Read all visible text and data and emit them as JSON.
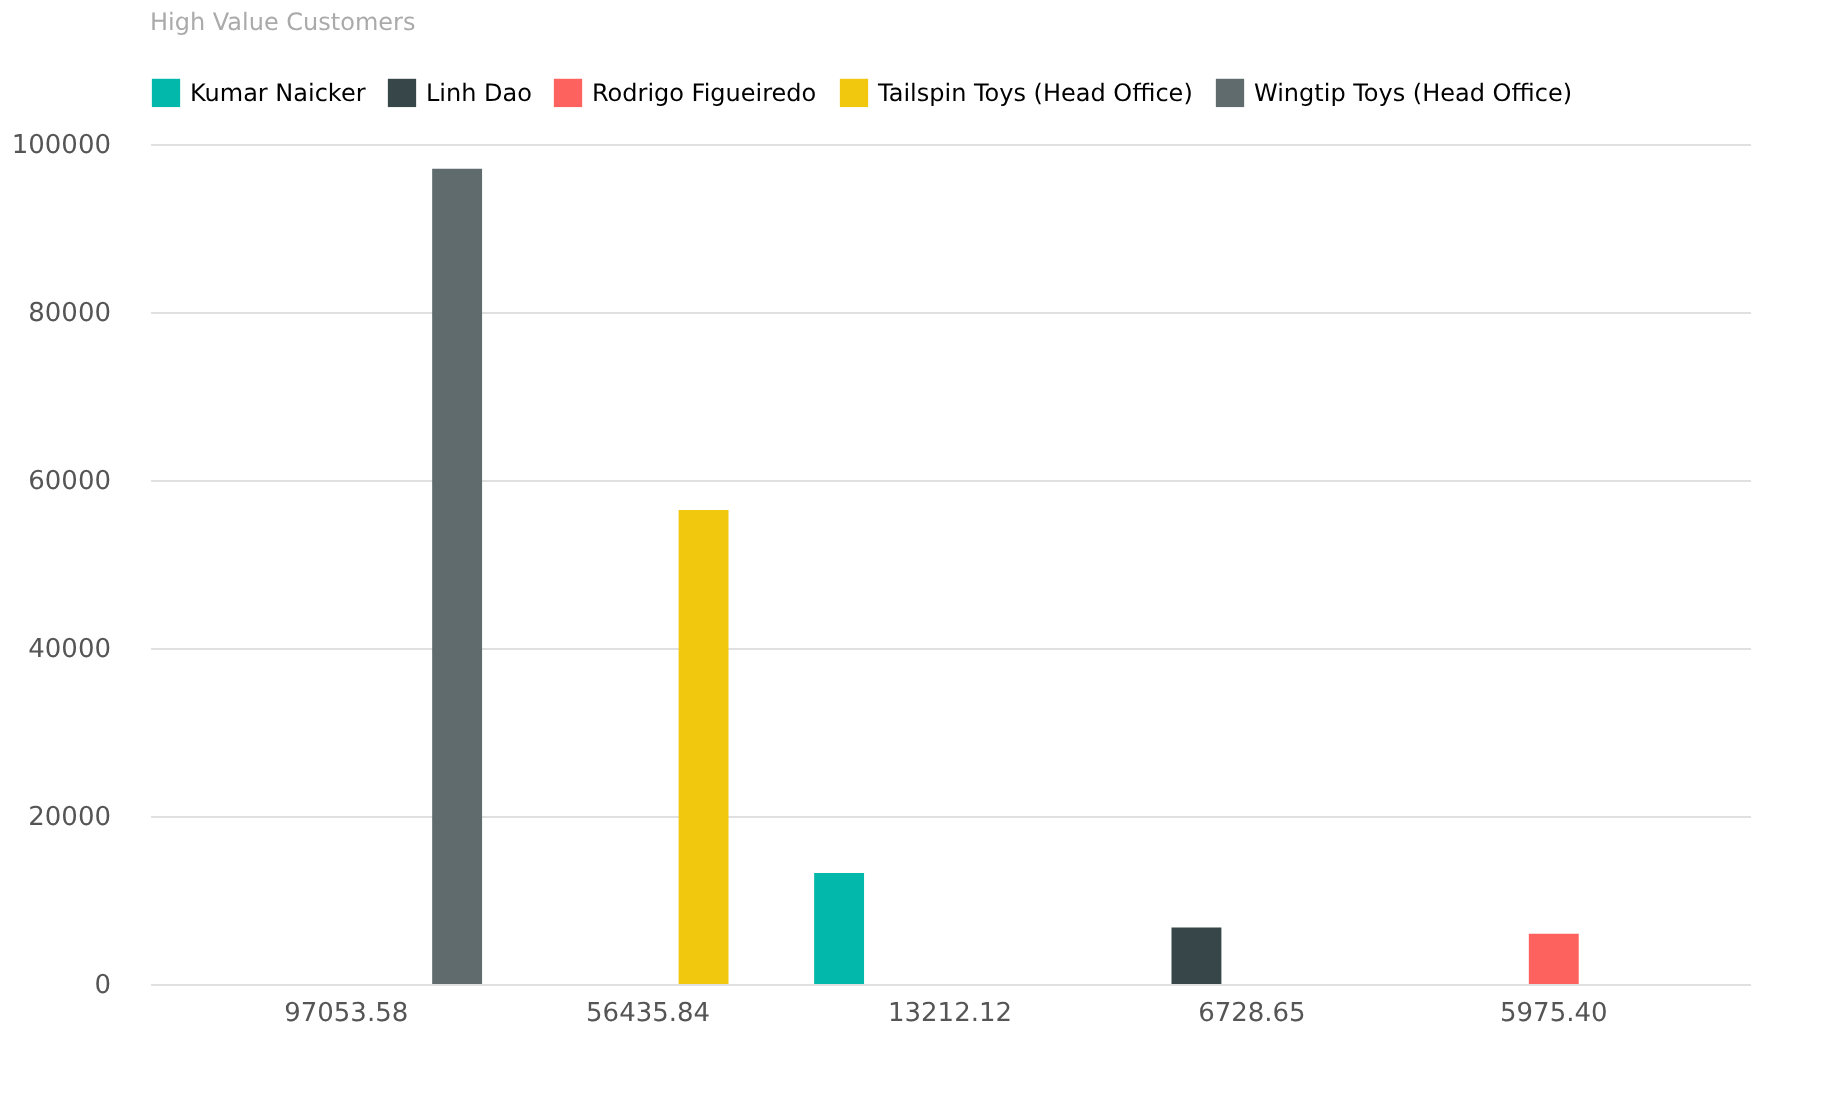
{
  "chart_data": {
    "type": "bar",
    "title": "High Value Customers",
    "categories": [
      "97053.58",
      "56435.84",
      "13212.12",
      "6728.65",
      "5975.40"
    ],
    "series": [
      {
        "name": "Kumar Naicker",
        "color": "#01b8aa",
        "values": [
          null,
          null,
          13212.12,
          null,
          null
        ]
      },
      {
        "name": "Linh Dao",
        "color": "#374649",
        "values": [
          null,
          null,
          null,
          6728.65,
          null
        ]
      },
      {
        "name": "Rodrigo Figueiredo",
        "color": "#fd625e",
        "values": [
          null,
          null,
          null,
          null,
          5975.4
        ]
      },
      {
        "name": "Tailspin Toys (Head Office)",
        "color": "#f2c80f",
        "values": [
          null,
          56435.84,
          null,
          null,
          null
        ]
      },
      {
        "name": "Wingtip Toys (Head Office)",
        "color": "#5f6b6d",
        "values": [
          97053.58,
          null,
          null,
          null,
          null
        ]
      }
    ],
    "ylim": [
      0,
      100000
    ],
    "yticks": [
      0,
      20000,
      40000,
      60000,
      80000,
      100000
    ],
    "grid": "y",
    "legend": "top left"
  }
}
